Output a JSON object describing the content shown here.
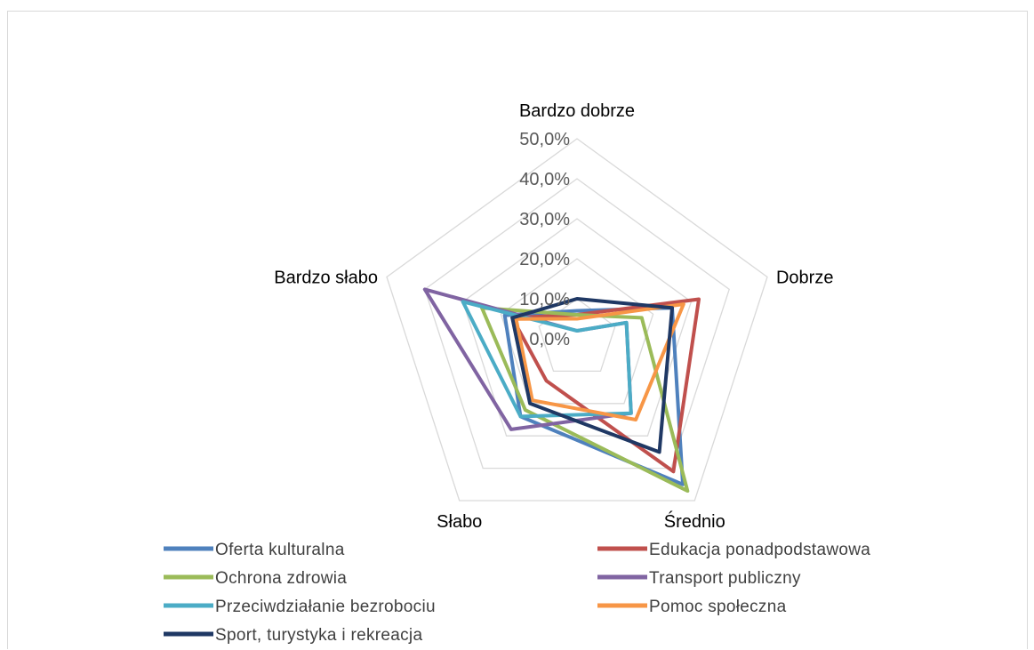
{
  "chart_data": {
    "type": "radar",
    "categories": [
      "Bardzo dobrze",
      "Dobrze",
      "Średnio",
      "Słabo",
      "Bardzo słabo"
    ],
    "ticks": [
      "0,0%",
      "10,0%",
      "20,0%",
      "30,0%",
      "40,0%",
      "50,0%"
    ],
    "rlim": [
      0,
      50
    ],
    "legend_position": "bottom",
    "series": [
      {
        "name": "Oferta kulturalna",
        "color": "#4f81bd",
        "values": [
          7,
          25,
          45,
          24,
          19
        ]
      },
      {
        "name": "Edukacja ponadpodstawowa",
        "color": "#c0504d",
        "values": [
          6,
          32,
          41,
          13,
          17
        ]
      },
      {
        "name": "Ochrona zdrowia",
        "color": "#9bbb59",
        "values": [
          6,
          17,
          47,
          22,
          25
        ]
      },
      {
        "name": "Transport publiczny",
        "color": "#8064a2",
        "values": [
          2,
          13,
          23,
          28,
          40
        ]
      },
      {
        "name": "Przeciwdziałanie bezrobociu",
        "color": "#4bacc6",
        "values": [
          2,
          13,
          23,
          24,
          30
        ]
      },
      {
        "name": "Pomoc społeczna",
        "color": "#f79646",
        "values": [
          5,
          28,
          25,
          19,
          16
        ]
      },
      {
        "name": "Sport, turystyka i rekreacja",
        "color": "#1f3864",
        "values": [
          10,
          25,
          35,
          20,
          17
        ]
      }
    ]
  }
}
